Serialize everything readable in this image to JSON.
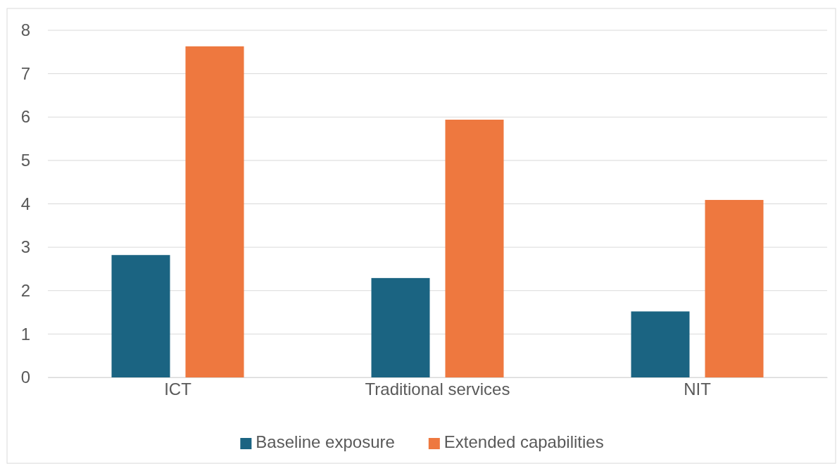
{
  "chart_data": {
    "type": "bar",
    "categories": [
      "ICT",
      "Traditional services",
      "NIT"
    ],
    "series": [
      {
        "name": "Baseline exposure",
        "color": "#1b6482",
        "values": [
          2.82,
          2.29,
          1.52
        ]
      },
      {
        "name": "Extended capabilities",
        "color": "#ee783f",
        "values": [
          7.63,
          5.94,
          4.09
        ]
      }
    ],
    "ylim": [
      0,
      8
    ],
    "yticks": [
      0,
      1,
      2,
      3,
      4,
      5,
      6,
      7,
      8
    ],
    "grid": "y",
    "legend": "bottom"
  }
}
